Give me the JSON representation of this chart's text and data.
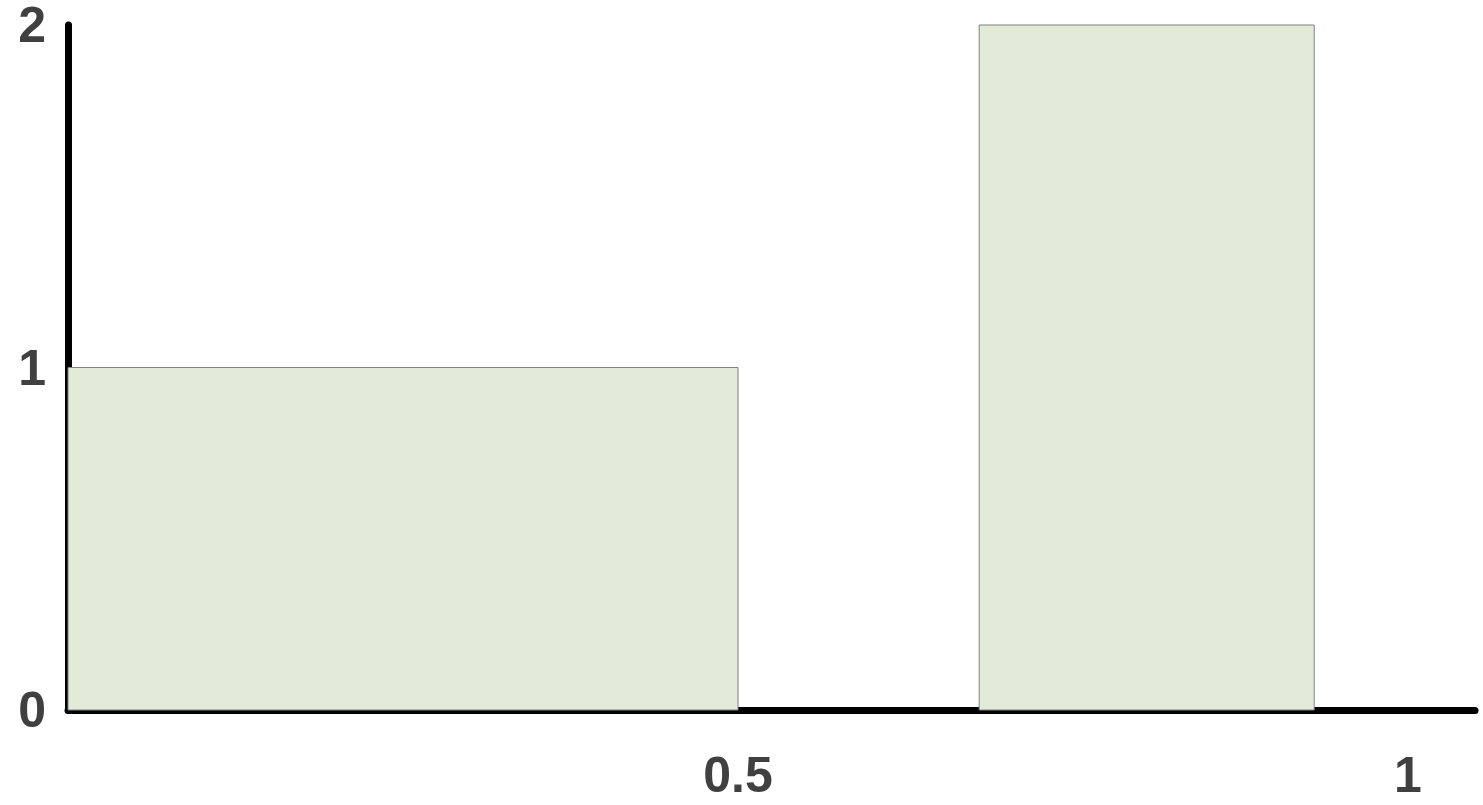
{
  "chart_data": {
    "type": "histogram",
    "bins": [
      0,
      0.5,
      0.68,
      0.93
    ],
    "values": [
      1,
      0,
      2
    ],
    "color": "#e2ead8",
    "xlim": [
      0,
      1.05
    ],
    "xticks": [
      0.5,
      1
    ],
    "ylim": [
      0,
      2
    ],
    "yticks": [
      0,
      1,
      2
    ],
    "grid": false
  }
}
